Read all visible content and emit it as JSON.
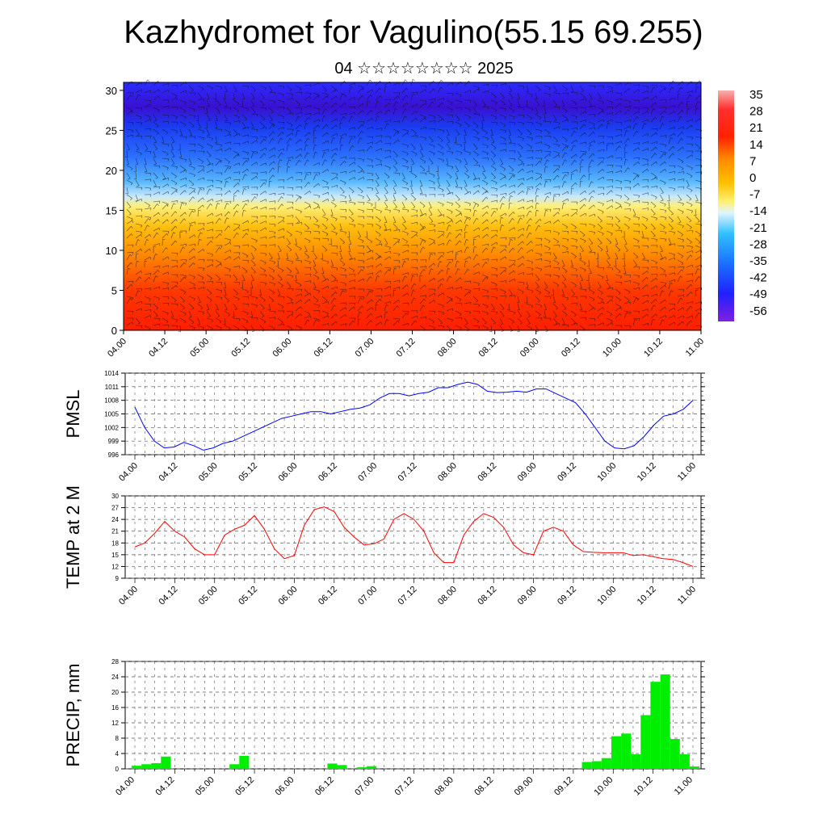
{
  "title": "Kazhydromet for Vagulino(55.15 69.255)",
  "subtitle": "04 ☆☆☆☆☆☆☆☆ 2025",
  "time_labels": [
    "04.00",
    "04.12",
    "05.00",
    "05.12",
    "06.00",
    "06.12",
    "07.00",
    "07.12",
    "08.00",
    "08.12",
    "09.00",
    "09.12",
    "10.00",
    "10.12",
    "11.00"
  ],
  "chart_data": [
    {
      "type": "heatmap",
      "name": "vertical-section",
      "ylim": [
        0,
        31
      ],
      "yticks": [
        0,
        5,
        10,
        15,
        20,
        25,
        30
      ],
      "colorbar_labels": [
        "35",
        "28",
        "21",
        "14",
        "7",
        "0",
        "-7",
        "-14",
        "-21",
        "-28",
        "-35",
        "-42",
        "-49",
        "-56"
      ],
      "colors": {
        "warm": "#ff2a00",
        "orange": "#ff9a00",
        "yellow": "#ffe24a",
        "cold": "#1e6cff",
        "deep": "#2a10d8"
      }
    },
    {
      "type": "line",
      "ylabel": "PMSL",
      "ylim": [
        996,
        1014
      ],
      "yticks": [
        996,
        999,
        1002,
        1005,
        1008,
        1011,
        1014
      ],
      "color": "#0000ff",
      "values": [
        1006.5,
        1002,
        999,
        997.5,
        997.7,
        998.7,
        998,
        997,
        997.5,
        998.5,
        999,
        1000,
        1001,
        1002,
        1003,
        1004,
        1004.5,
        1005,
        1005.5,
        1005.5,
        1005,
        1005.5,
        1006,
        1006.3,
        1007,
        1008.5,
        1009.5,
        1009.5,
        1009,
        1009.5,
        1009.8,
        1010.8,
        1010.8,
        1011.5,
        1012,
        1011.5,
        1010,
        1009.7,
        1009.8,
        1010,
        1009.8,
        1010.5,
        1010.5,
        1009.5,
        1008.5,
        1007.5,
        1005,
        1002,
        999,
        997.5,
        997.3,
        998,
        1000,
        1002.5,
        1004.5,
        1005,
        1006,
        1008
      ]
    },
    {
      "type": "line",
      "ylabel": "TEMP at 2 M",
      "ylim": [
        9,
        30
      ],
      "yticks": [
        9,
        12,
        15,
        18,
        21,
        24,
        27,
        30
      ],
      "color": "#ff0000",
      "values": [
        17,
        18,
        20.5,
        23.5,
        21,
        19.5,
        16.5,
        15,
        15,
        20,
        21.5,
        22.5,
        25,
        21.5,
        16.5,
        14,
        14.8,
        22.5,
        26.5,
        27.2,
        26,
        22,
        19.5,
        17.5,
        17.8,
        19,
        24,
        25.5,
        24,
        21,
        15.5,
        13,
        13,
        20,
        23.5,
        25.5,
        24.5,
        22,
        17.5,
        15.5,
        15,
        21,
        22,
        21,
        17.5,
        15.8,
        15.6,
        15.5,
        15.5,
        15.5,
        14.8,
        15,
        14.5,
        14,
        13.8,
        13,
        12
      ]
    },
    {
      "type": "bar",
      "ylabel": "PRECIP, mm",
      "ylim": [
        0,
        28
      ],
      "yticks": [
        0,
        4,
        8,
        12,
        16,
        20,
        24,
        28
      ],
      "color": "#00ee00",
      "values": [
        0.8,
        1.2,
        1.5,
        3.2,
        0,
        0,
        0,
        0,
        0,
        0,
        1.2,
        3.4,
        0,
        0,
        0,
        0,
        0,
        0,
        0,
        0,
        1.4,
        1.0,
        0,
        0.4,
        0.7,
        0,
        0,
        0,
        0,
        0,
        0,
        0,
        0,
        0,
        0,
        0,
        0,
        0,
        0,
        0,
        0,
        0,
        0,
        0,
        0,
        0,
        1.8,
        2.0,
        2.8,
        8.5,
        9.2,
        3.8,
        14,
        22.7,
        24.6,
        7.8,
        3.8,
        0.6
      ]
    }
  ]
}
